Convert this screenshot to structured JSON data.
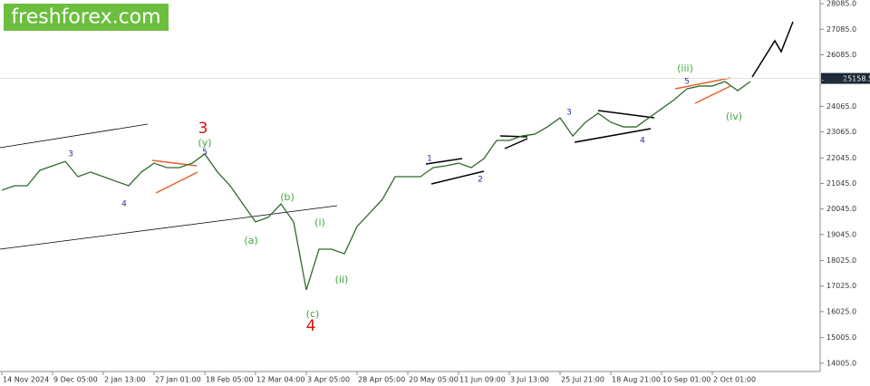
{
  "watermark": "freshforex.com",
  "chart_data": {
    "type": "line",
    "categories": [
      "14 Nov 2024",
      null,
      null,
      null,
      "9 Dec 05:00",
      null,
      null,
      null,
      "2 Jan 13:00",
      null,
      null,
      null,
      "27 Jan 01:00",
      null,
      null,
      null,
      "18 Feb 05:00",
      null,
      null,
      null,
      "12 Mar 04:00",
      null,
      null,
      null,
      "3 Apr 05:00",
      null,
      null,
      null,
      "28 Apr 05:00",
      null,
      null,
      null,
      "20 May 05:00",
      null,
      null,
      null,
      "11 Jun 09:00",
      null,
      null,
      null,
      "3 Jul 13:00",
      null,
      null,
      null,
      "25 Jul 21:00",
      null,
      null,
      null,
      "18 Aug 21:00",
      null,
      null,
      null,
      "10 Sep 01:00",
      null,
      null,
      null,
      "2 Oct 01:00",
      null,
      null,
      null
    ],
    "values": [
      20780,
      20955,
      20955,
      21560,
      21735,
      21910,
      21310,
      21490,
      21310,
      21130,
      20955,
      21490,
      21840,
      21665,
      21665,
      21840,
      22200,
      21490,
      20955,
      20245,
      19540,
      19720,
      20245,
      19540,
      16876,
      18470,
      18470,
      18290,
      19360,
      19890,
      20425,
      21310,
      21310,
      21310,
      21665,
      21735,
      21840,
      21665,
      22020,
      22730,
      22730,
      22905,
      22975,
      23260,
      23615,
      22905,
      23440,
      23795,
      23440,
      23260,
      23260,
      23615,
      23970,
      24325,
      24750,
      24860,
      24860,
      25035,
      24680,
      25035
    ],
    "color": "#2f6b2a",
    "ylim": [
      13680,
      28230
    ],
    "yticks": [
      {
        "value": 28085,
        "label": "28085.0"
      },
      {
        "value": 27085,
        "label": "27085.0"
      },
      {
        "value": 26085,
        "label": "26085.0"
      },
      {
        "value": 25085,
        "label": "25085.0"
      },
      {
        "value": 24065,
        "label": "24065.0"
      },
      {
        "value": 23065,
        "label": "23065.0"
      },
      {
        "value": 22045,
        "label": "22045.0"
      },
      {
        "value": 21045,
        "label": "21045.0"
      },
      {
        "value": 20045,
        "label": "20045.0"
      },
      {
        "value": 19045,
        "label": "19045.0"
      },
      {
        "value": 18025,
        "label": "18025.0"
      },
      {
        "value": 17025,
        "label": "17025.0"
      },
      {
        "value": 16025,
        "label": "16025.0"
      },
      {
        "value": 15005,
        "label": "15005.0"
      },
      {
        "value": 14005,
        "label": "14005.0"
      }
    ],
    "current_price": {
      "value": 25158.5,
      "label": "25158.5"
    },
    "annotations": [
      {
        "text": "3",
        "color": "#2c2ca8"
      },
      {
        "text": "4",
        "color": "#2c2ca8"
      },
      {
        "text": "3",
        "color": "#e01010"
      },
      {
        "text": "(y)",
        "color": "#3aaa3a"
      },
      {
        "text": "5",
        "color": "#2c2ca8"
      },
      {
        "text": "(b)",
        "color": "#3aaa3a"
      },
      {
        "text": "(a)",
        "color": "#3aaa3a"
      },
      {
        "text": "(i)",
        "color": "#3aaa3a"
      },
      {
        "text": "(ii)",
        "color": "#3aaa3a"
      },
      {
        "text": "(c)",
        "color": "#3aaa3a"
      },
      {
        "text": "4",
        "color": "#e01010"
      },
      {
        "text": "1",
        "color": "#2c2ca8"
      },
      {
        "text": "2",
        "color": "#2c2ca8"
      },
      {
        "text": "3",
        "color": "#2c2ca8"
      },
      {
        "text": "4",
        "color": "#2c2ca8"
      },
      {
        "text": "(iii)",
        "color": "#3aaa3a"
      },
      {
        "text": "5",
        "color": "#2c2ca8"
      },
      {
        "text": "(iv)",
        "color": "#3aaa3a"
      }
    ]
  }
}
